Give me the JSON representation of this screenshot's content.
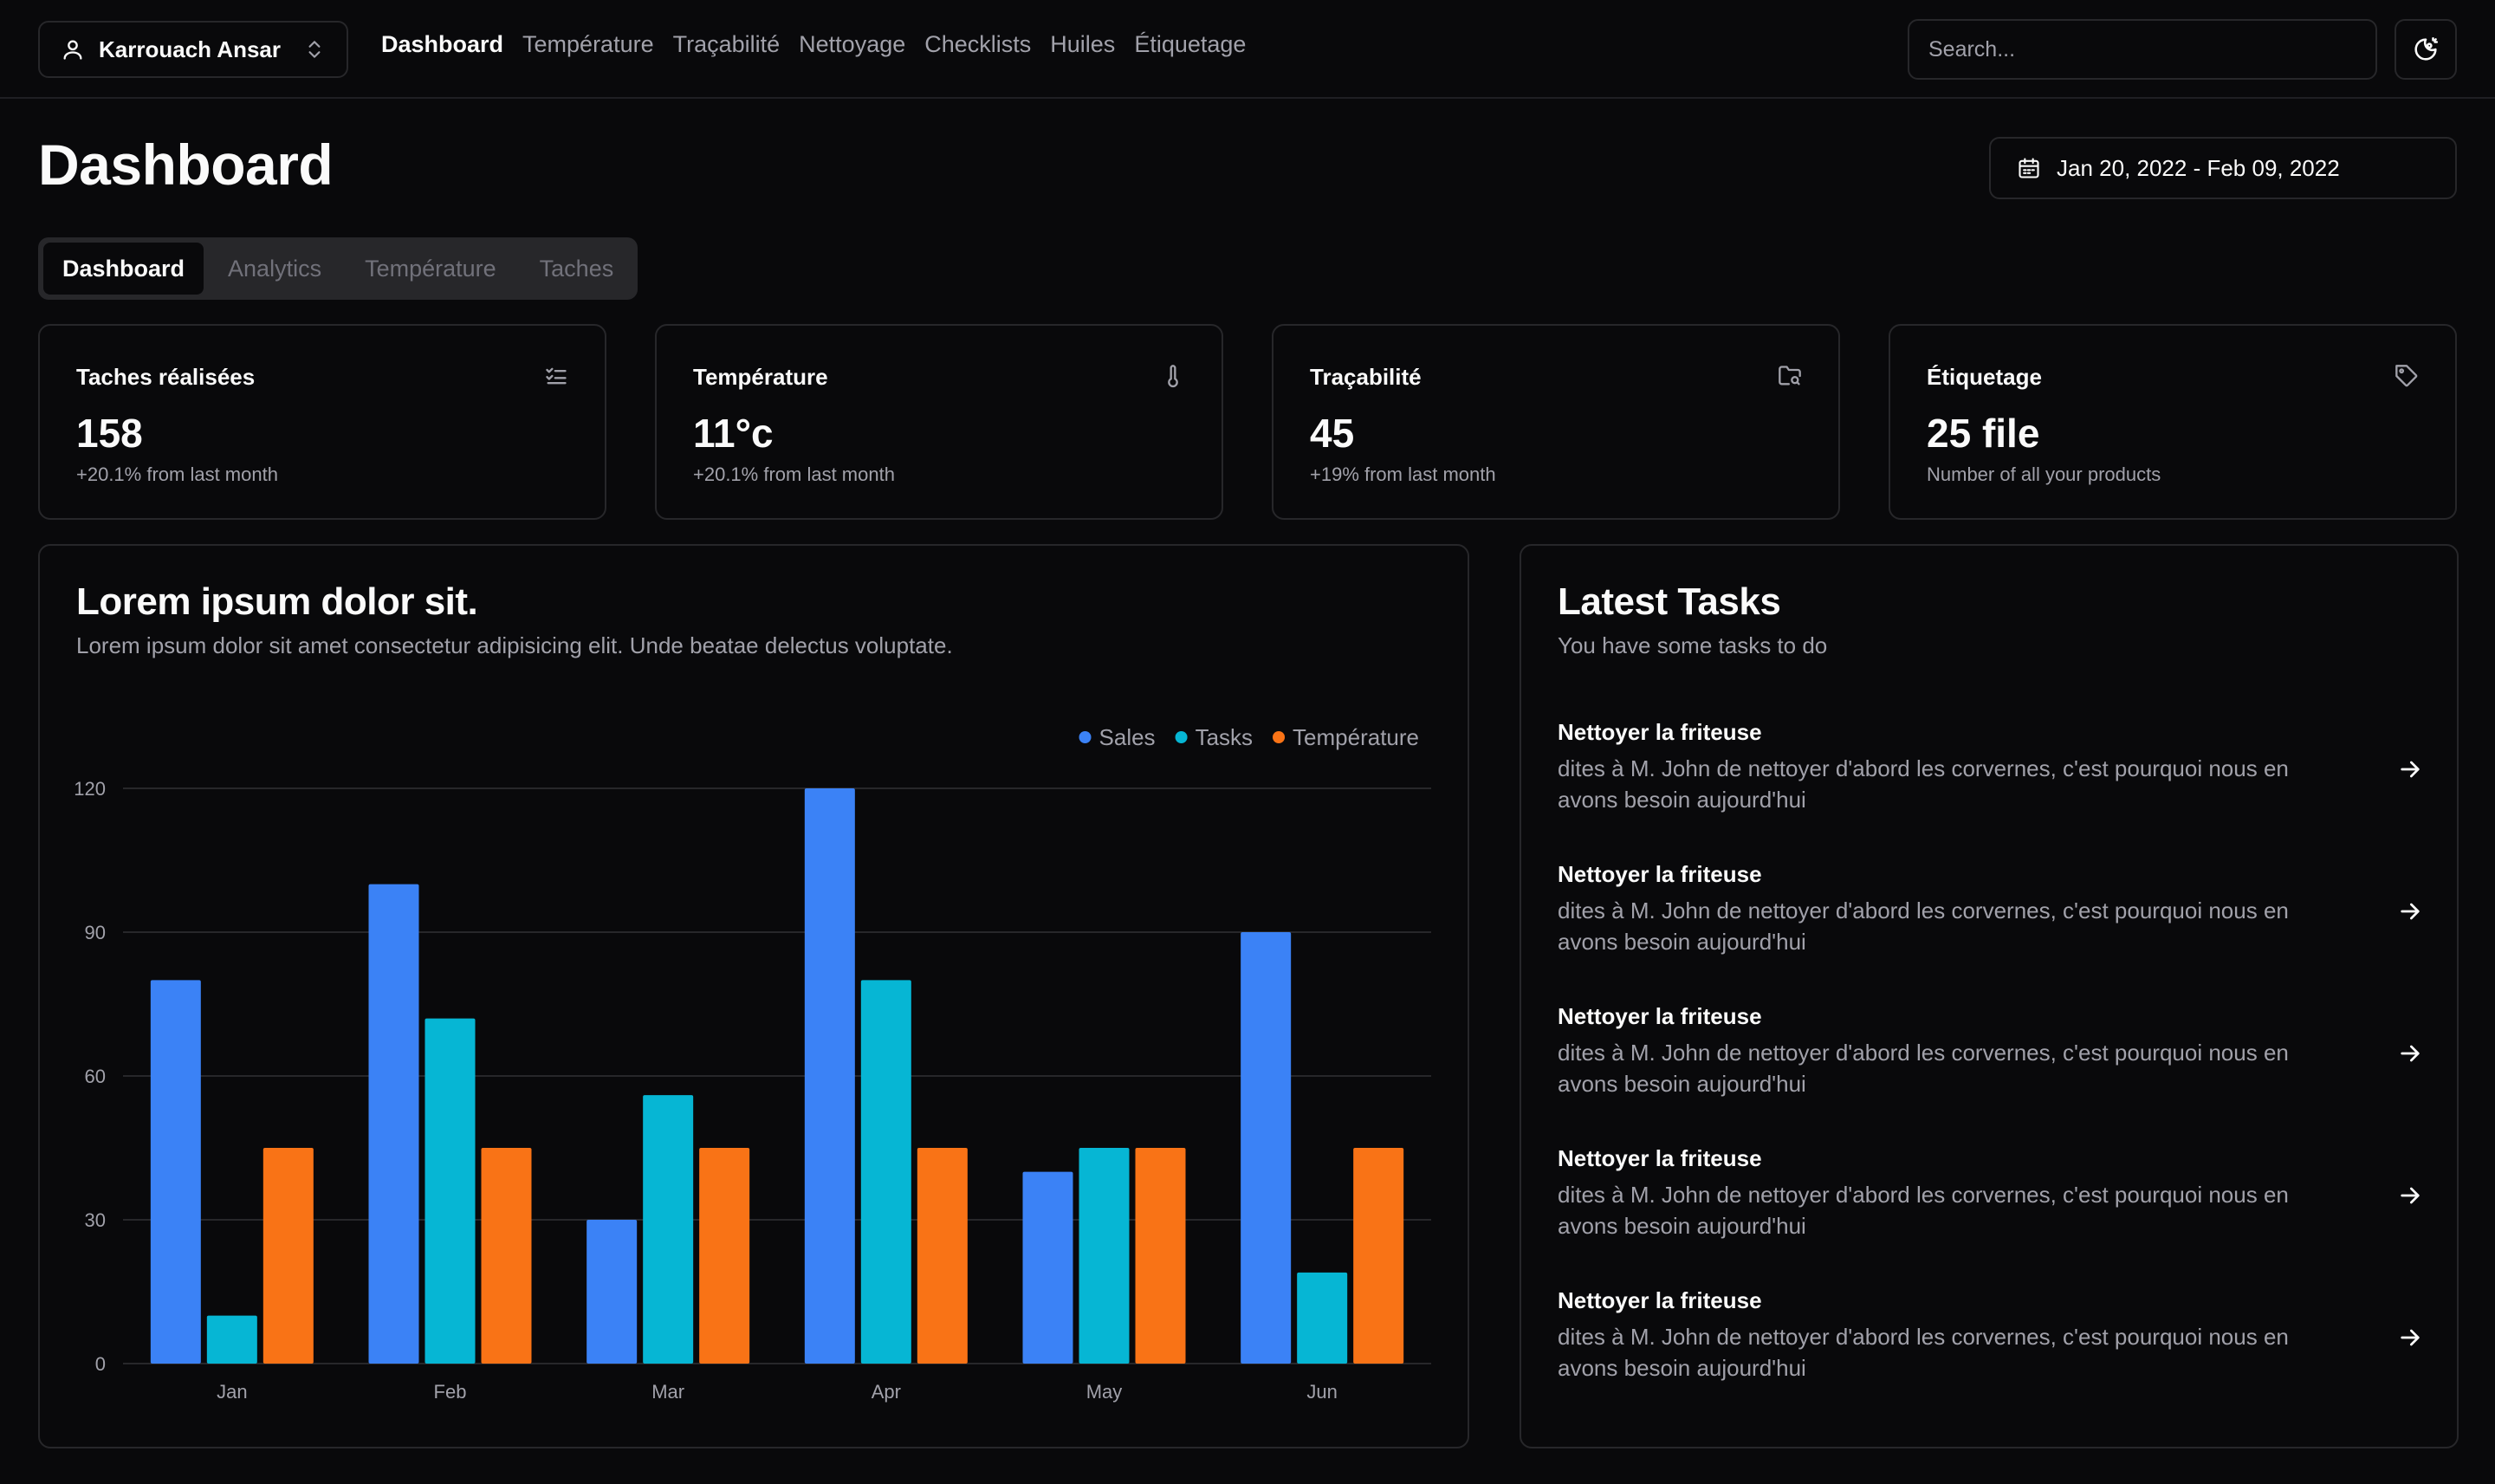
{
  "user": {
    "name": "Karrouach Ansar",
    "icon": "user-icon"
  },
  "nav": [
    {
      "label": "Dashboard",
      "active": true
    },
    {
      "label": "Température",
      "active": false
    },
    {
      "label": "Traçabilité",
      "active": false
    },
    {
      "label": "Nettoyage",
      "active": false
    },
    {
      "label": "Checklists",
      "active": false
    },
    {
      "label": "Huiles",
      "active": false
    },
    {
      "label": "Étiquetage",
      "active": false
    }
  ],
  "search": {
    "placeholder": "Search..."
  },
  "theme_toggle": {
    "icon": "moon-sun-icon"
  },
  "page_title": "Dashboard",
  "date_range": {
    "label": "Jan 20, 2022 - Feb 09, 2022",
    "icon": "calendar-icon"
  },
  "tabs": [
    {
      "label": "Dashboard",
      "active": true
    },
    {
      "label": "Analytics",
      "active": false
    },
    {
      "label": "Température",
      "active": false
    },
    {
      "label": "Taches",
      "active": false
    }
  ],
  "stats": [
    {
      "title": "Taches réalisées",
      "value": "158",
      "sub": "+20.1% from last month",
      "icon": "checklist-icon"
    },
    {
      "title": "Température",
      "value": "11°c",
      "sub": "+20.1% from last month",
      "icon": "thermometer-icon"
    },
    {
      "title": "Traçabilité",
      "value": "45",
      "sub": "+19% from last month",
      "icon": "folder-search-icon"
    },
    {
      "title": "Étiquetage",
      "value": "25 file",
      "sub": "Number of all your products",
      "icon": "tag-icon"
    }
  ],
  "chart_card": {
    "title": "Lorem ipsum dolor sit.",
    "description": "Lorem ipsum dolor sit amet consectetur adipisicing elit. Unde beatae delectus voluptate."
  },
  "chart_data": {
    "type": "bar",
    "categories": [
      "Jan",
      "Feb",
      "Mar",
      "Apr",
      "May",
      "Jun"
    ],
    "series": [
      {
        "name": "Sales",
        "color": "#3b82f6",
        "values": [
          80,
          100,
          30,
          120,
          40,
          90
        ]
      },
      {
        "name": "Tasks",
        "color": "#06b6d4",
        "values": [
          10,
          72,
          56,
          80,
          45,
          19
        ]
      },
      {
        "name": "Température",
        "color": "#f97316",
        "values": [
          45,
          45,
          45,
          45,
          45,
          45
        ]
      }
    ],
    "yticks": [
      0,
      30,
      60,
      90,
      120
    ],
    "ylim": [
      0,
      120
    ],
    "legend": "top-right",
    "grid": true
  },
  "tasks_card": {
    "title": "Latest Tasks",
    "subtitle": "You have some tasks to do",
    "items": [
      {
        "name": "Nettoyer la friteuse",
        "desc": "dites à M. John de nettoyer d'abord les corvernes, c'est pourquoi nous en avons besoin aujourd'hui"
      },
      {
        "name": "Nettoyer la friteuse",
        "desc": "dites à M. John de nettoyer d'abord les corvernes, c'est pourquoi nous en avons besoin aujourd'hui"
      },
      {
        "name": "Nettoyer la friteuse",
        "desc": "dites à M. John de nettoyer d'abord les corvernes, c'est pourquoi nous en avons besoin aujourd'hui"
      },
      {
        "name": "Nettoyer la friteuse",
        "desc": "dites à M. John de nettoyer d'abord les corvernes, c'est pourquoi nous en avons besoin aujourd'hui"
      },
      {
        "name": "Nettoyer la friteuse",
        "desc": "dites à M. John de nettoyer d'abord les corvernes, c'est pourquoi nous en avons besoin aujourd'hui"
      }
    ]
  }
}
